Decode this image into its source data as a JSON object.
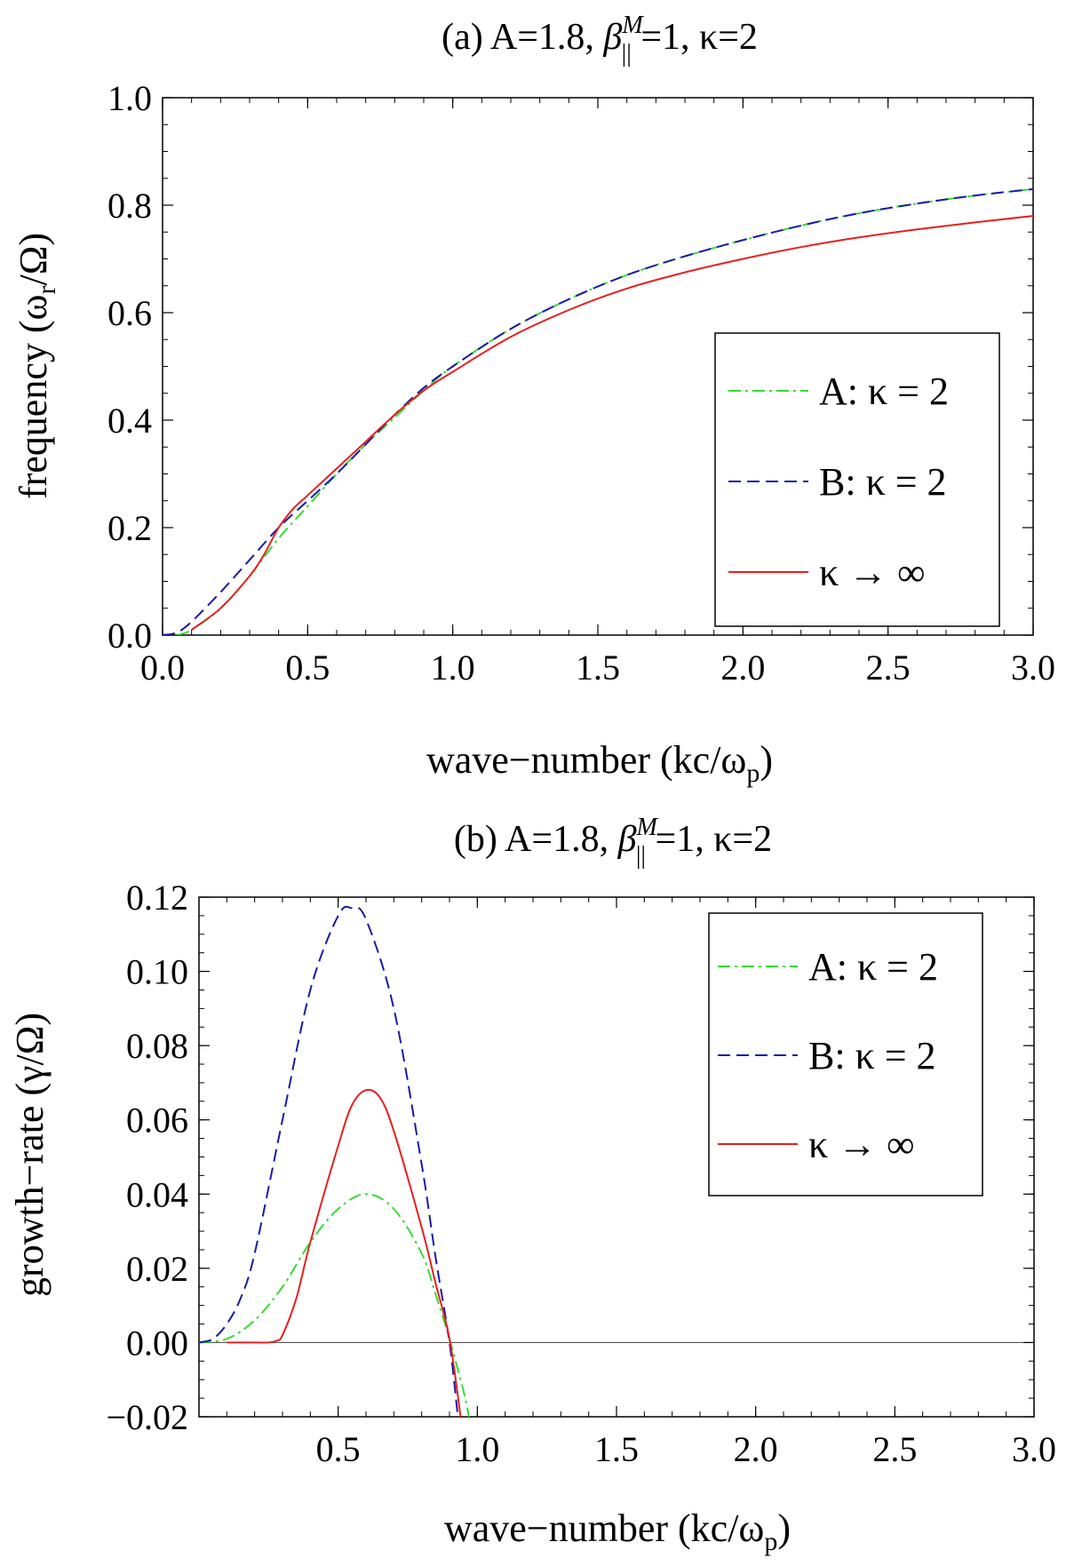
{
  "chart_data": [
    {
      "type": "line",
      "title": "(a) A=1.8, β‖M =1, κ=2",
      "title_parts": {
        "prefix": "(a) A=1.8, ",
        "beta": "β",
        "beta_sup": "M",
        "beta_sub": "||",
        "suffix": " =1, κ=2"
      },
      "xlabel": "wave−number (kc/ω",
      "xlabel_sub": "p",
      "xlabel_close": ")",
      "ylabel": "frequency (ω",
      "ylabel_sub": "r",
      "ylabel_close": "/Ω)",
      "xlim": [
        0,
        3
      ],
      "ylim": [
        0,
        1
      ],
      "xticks": [
        "0.0",
        "0.5",
        "1.0",
        "1.5",
        "2.0",
        "2.5",
        "3.0"
      ],
      "xtick_values": [
        0,
        0.5,
        1,
        1.5,
        2,
        2.5,
        3
      ],
      "yticks": [
        "0.0",
        "0.2",
        "0.4",
        "0.6",
        "0.8",
        "1.0"
      ],
      "ytick_values": [
        0,
        0.2,
        0.4,
        0.6,
        0.8,
        1.0
      ],
      "legend_position": "center-right",
      "series": [
        {
          "name": "A: κ = 2",
          "color": "#33dd33",
          "dash": "dashdot",
          "x": [
            0.05,
            0.1,
            0.2,
            0.3,
            0.4,
            0.5,
            0.6,
            0.7,
            0.8,
            0.9,
            1.0,
            1.2,
            1.4,
            1.6,
            1.8,
            2.0,
            2.2,
            2.4,
            2.6,
            2.8,
            3.0
          ],
          "y": [
            0.0,
            0.01,
            0.05,
            0.11,
            0.18,
            0.24,
            0.3,
            0.355,
            0.405,
            0.455,
            0.5,
            0.57,
            0.625,
            0.67,
            0.705,
            0.735,
            0.762,
            0.785,
            0.803,
            0.818,
            0.83
          ]
        },
        {
          "name": "B: κ = 2",
          "color": "#1a1aa6",
          "dash": "dashed",
          "x": [
            0.0,
            0.05,
            0.1,
            0.2,
            0.3,
            0.4,
            0.5,
            0.6,
            0.7,
            0.8,
            0.9,
            1.0,
            1.2,
            1.4,
            1.6,
            1.8,
            2.0,
            2.2,
            2.4,
            2.6,
            2.8,
            3.0
          ],
          "y": [
            0.0,
            0.005,
            0.025,
            0.08,
            0.14,
            0.2,
            0.25,
            0.3,
            0.355,
            0.41,
            0.46,
            0.5,
            0.57,
            0.625,
            0.67,
            0.705,
            0.735,
            0.762,
            0.785,
            0.803,
            0.818,
            0.83
          ]
        },
        {
          "name": "κ → ∞",
          "color": "#e52020",
          "dash": "solid",
          "x": [
            0.1,
            0.2,
            0.3,
            0.35,
            0.4,
            0.45,
            0.5,
            0.6,
            0.7,
            0.8,
            0.9,
            1.0,
            1.2,
            1.4,
            1.6,
            1.8,
            2.0,
            2.2,
            2.4,
            2.6,
            2.8,
            3.0
          ],
          "y": [
            0.01,
            0.05,
            0.11,
            0.15,
            0.2,
            0.235,
            0.26,
            0.31,
            0.36,
            0.41,
            0.455,
            0.49,
            0.555,
            0.605,
            0.645,
            0.675,
            0.7,
            0.722,
            0.74,
            0.755,
            0.768,
            0.78
          ]
        }
      ]
    },
    {
      "type": "line",
      "title": "(b) A=1.8, β‖M =1, κ=2",
      "title_parts": {
        "prefix": "(b) A=1.8, ",
        "beta": "β",
        "beta_sup": "M",
        "beta_sub": "||",
        "suffix": " =1, κ=2"
      },
      "xlabel": "wave−number (kc/ω",
      "xlabel_sub": "p",
      "xlabel_close": ")",
      "ylabel": "growth−rate (γ/Ω)",
      "xlim": [
        0,
        3
      ],
      "ylim": [
        -0.02,
        0.12
      ],
      "xticks": [
        "0.5",
        "1.0",
        "1.5",
        "2.0",
        "2.5",
        "3.0"
      ],
      "xtick_values": [
        0.5,
        1,
        1.5,
        2,
        2.5,
        3
      ],
      "yticks": [
        "−0.02",
        "0.00",
        "0.02",
        "0.04",
        "0.06",
        "0.08",
        "0.10",
        "0.12"
      ],
      "ytick_values": [
        -0.02,
        0,
        0.02,
        0.04,
        0.06,
        0.08,
        0.1,
        0.12
      ],
      "zero_line": true,
      "legend_position": "top-right",
      "series": [
        {
          "name": "A: κ = 2",
          "color": "#33dd33",
          "dash": "dashdot",
          "x": [
            0.0,
            0.1,
            0.2,
            0.3,
            0.4,
            0.5,
            0.6,
            0.7,
            0.8,
            0.85,
            0.9,
            0.95,
            0.97
          ],
          "y": [
            0.0,
            0.001,
            0.006,
            0.015,
            0.027,
            0.036,
            0.04,
            0.036,
            0.024,
            0.013,
            0.001,
            -0.013,
            -0.02
          ]
        },
        {
          "name": "B: κ = 2",
          "color": "#1a1aa6",
          "dash": "dashed",
          "x": [
            0.0,
            0.05,
            0.1,
            0.15,
            0.2,
            0.3,
            0.4,
            0.5,
            0.55,
            0.6,
            0.7,
            0.8,
            0.85,
            0.9,
            0.93
          ],
          "y": [
            0.0,
            0.001,
            0.005,
            0.012,
            0.024,
            0.06,
            0.095,
            0.115,
            0.117,
            0.114,
            0.09,
            0.048,
            0.023,
            0.0,
            -0.02
          ]
        },
        {
          "name": "κ → ∞",
          "color": "#e52020",
          "dash": "solid",
          "x": [
            0.1,
            0.2,
            0.25,
            0.28,
            0.3,
            0.35,
            0.4,
            0.5,
            0.55,
            0.6,
            0.65,
            0.7,
            0.8,
            0.85,
            0.9,
            0.94
          ],
          "y": [
            0.0,
            0.0,
            0.0,
            0.0005,
            0.002,
            0.012,
            0.027,
            0.053,
            0.064,
            0.068,
            0.066,
            0.057,
            0.031,
            0.016,
            0.001,
            -0.02
          ]
        }
      ]
    }
  ]
}
